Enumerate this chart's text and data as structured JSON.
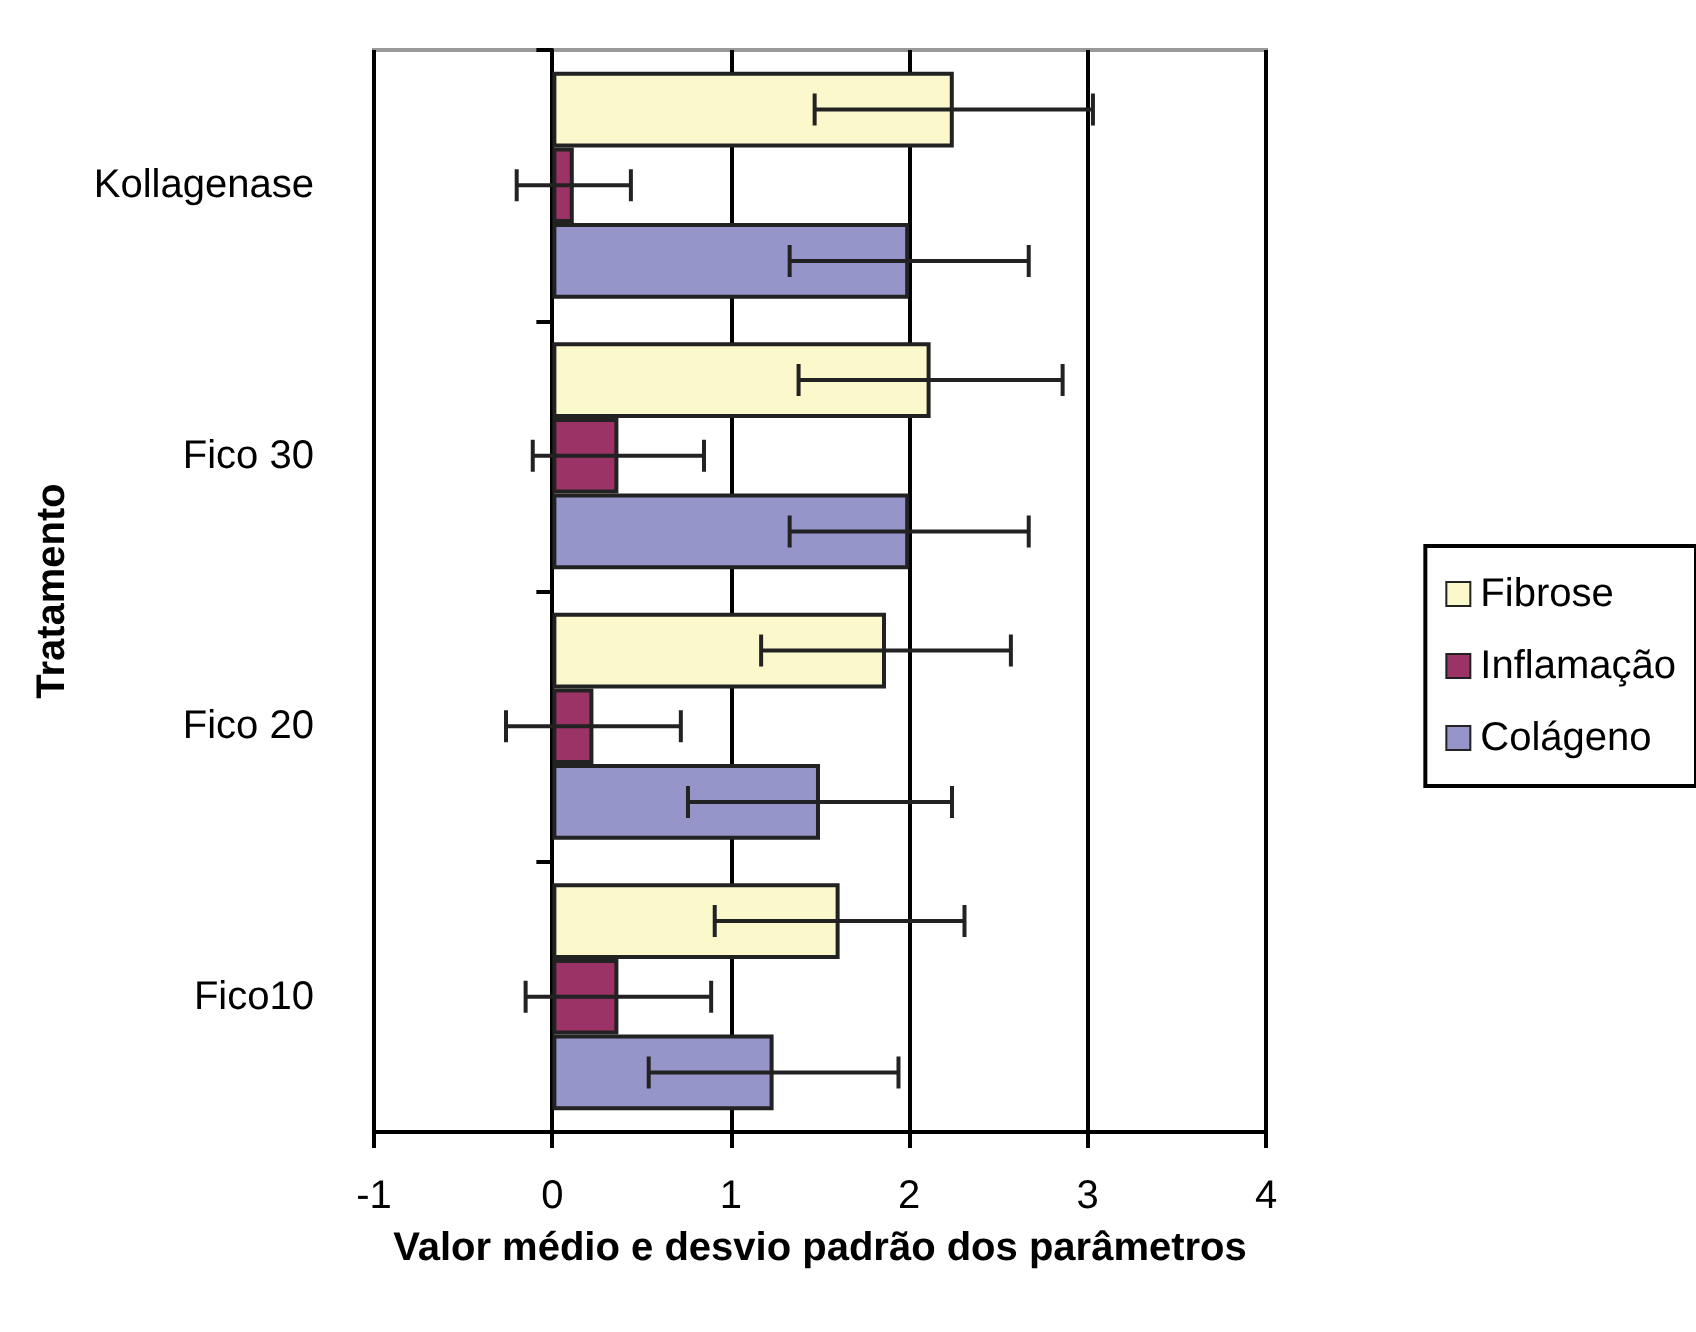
{
  "chart_data": {
    "type": "bar",
    "orientation": "horizontal",
    "categories": [
      "Kollagenase",
      "Fico 30",
      "Fico 20",
      "Fico10"
    ],
    "series": [
      {
        "name": "Fibrose",
        "color": "#fbf8cc",
        "values": [
          2.25,
          2.12,
          1.87,
          1.61
        ],
        "errors": [
          0.78,
          0.74,
          0.7,
          0.7
        ]
      },
      {
        "name": "Inflamação",
        "color": "#9b3366",
        "values": [
          0.12,
          0.37,
          0.23,
          0.37
        ],
        "errors": [
          0.32,
          0.48,
          0.49,
          0.52
        ]
      },
      {
        "name": "Colágeno",
        "color": "#9595c9",
        "values": [
          2.0,
          2.0,
          1.5,
          1.24
        ],
        "errors": [
          0.67,
          0.67,
          0.74,
          0.7
        ]
      }
    ],
    "xlim": [
      -1,
      4
    ],
    "xticks": [
      -1,
      0,
      1,
      2,
      3,
      4
    ],
    "xlabel": "Valor médio e desvio padrão dos parâmetros",
    "ylabel": "Tratamento",
    "grid": "x",
    "legend": "right"
  }
}
